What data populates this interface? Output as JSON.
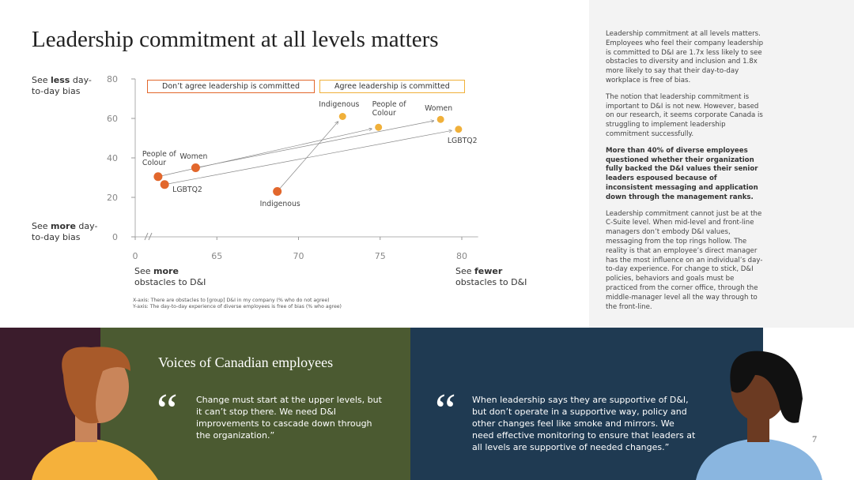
{
  "title": "Leadership commitment at all levels matters",
  "chart_data": {
    "type": "scatter",
    "series": [
      {
        "name": "Don’t agree leadership is committed",
        "color": "#e2672c",
        "labels": [
          "People of Colour",
          "Women",
          "LGBTQ2",
          "Indigenous"
        ],
        "x": [
          61.4,
          63.7,
          61.8,
          68.7
        ],
        "values": [
          30.5,
          35,
          26.5,
          23
        ]
      },
      {
        "name": "Agree leadership is committed",
        "color": "#f0b03a",
        "labels": [
          "Indigenous",
          "People of Colour",
          "Women",
          "LGBTQ2"
        ],
        "x": [
          72.7,
          74.9,
          78.7,
          79.8
        ],
        "values": [
          61,
          55.5,
          59.5,
          54.5
        ]
      }
    ],
    "xlim": [
      60,
      81
    ],
    "xticks": [
      {
        "value": 60,
        "label": "0"
      },
      65,
      70,
      75,
      80
    ],
    "ylim": [
      0,
      80
    ],
    "yticks": [
      0,
      20,
      40,
      60,
      80
    ],
    "y_top_label": {
      "pre": "See ",
      "bold": "less",
      "post": " day-to-day bias"
    },
    "y_bottom_label": {
      "pre": "See ",
      "bold": "more",
      "post": " day-to-day bias"
    },
    "x_left_label": {
      "pre": "See ",
      "bold": "more",
      "post": " obstacles to D&I"
    },
    "x_right_label": {
      "pre": "See ",
      "bold": "fewer",
      "post": " obstacles to D&I"
    },
    "notes": [
      "X-axis: There are obstacles to [group] D&I in my company (% who do not agree)",
      "Y-axis: The day-to-day experience of diverse employees is free of bias (% who agree)"
    ]
  },
  "sidebar": [
    "Leadership commitment at all levels matters. Employees who feel their company leadership is committed to D&I are 1.7x less likely to see obstacles to diversity and inclusion and 1.8x more likely to say that their day-to-day workplace is free of bias.",
    "The notion that leadership commitment is important to D&I is not new. However, based on our research, it seems corporate Canada is struggling to implement leadership commitment successfully.",
    "More than 40% of diverse employees questioned whether their organization fully backed the D&I values their senior leaders espoused because of inconsistent messaging and application down through the management ranks.",
    "Leadership commitment cannot just be at the C-Suite level. When mid-level and front-line managers don’t embody D&I values, messaging from the top rings hollow. The reality is that an employee’s direct manager has the most influence on an individual’s day-to-day experience. For change to stick, D&I policies, behaviors and goals must be practiced from the corner office, through the middle-manager level all the way through to the front-line."
  ],
  "voices": {
    "title": "Voices of Canadian employees",
    "quote_mark": "“",
    "quotes": [
      "Change must start at the upper levels, but it can’t stop there. We need D&I improvements to cascade down through the organization.”",
      "When leadership says they are supportive of D&I, but don’t operate in a supportive way, policy and other changes feel like smoke and mirrors. We need effective monitoring to ensure that leaders at all levels are supportive of needed changes.”"
    ]
  },
  "page_number": "7"
}
